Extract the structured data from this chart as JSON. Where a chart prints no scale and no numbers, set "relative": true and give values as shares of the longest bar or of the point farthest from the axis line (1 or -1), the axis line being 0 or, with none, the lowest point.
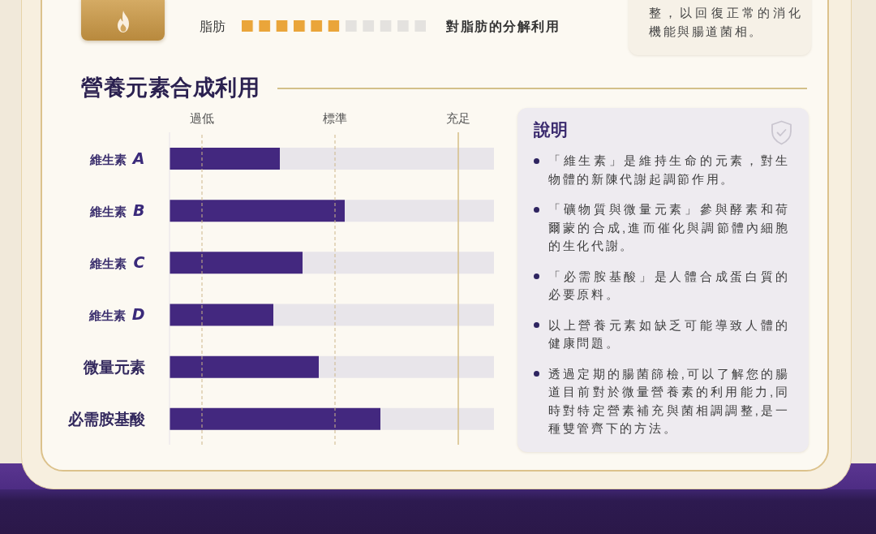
{
  "chart_data": [
    {
      "type": "bar",
      "orientation": "horizontal",
      "stacked": true,
      "relative": true,
      "categories": [
        "脂肪"
      ],
      "series": [
        {
          "color": "#eaa53a",
          "values": [
            0.53
          ]
        },
        {
          "color": "#e4e2df",
          "values": [
            0.47
          ]
        }
      ],
      "annotations": [
        "對脂肪的分解利用"
      ]
    },
    {
      "type": "other",
      "annotations": [
        "整，以回復正常的消化機能與腸道菌相。"
      ]
    },
    {
      "type": "bar",
      "title": "營養元素合成利用",
      "orientation": "horizontal",
      "stacked": true,
      "relative": true,
      "categories": [
        "維生素 A",
        "維生素 B",
        "維生素 C",
        "維生素 D",
        "微量元素",
        "必需胺基酸"
      ],
      "series": [
        {
          "color": "#43287f",
          "values": [
            0.34,
            0.54,
            0.41,
            0.32,
            0.46,
            0.65
          ]
        },
        {
          "color": "#e8e5ea",
          "values": [
            0.66,
            0.46,
            0.59,
            0.68,
            0.54,
            0.35
          ]
        }
      ],
      "ref_lines": [
        {
          "axis": "x",
          "value": 0.1,
          "label": "過低",
          "color": "#cdb68a",
          "line_style": "dashed"
        },
        {
          "axis": "x",
          "value": 0.51,
          "label": "標準",
          "color": "#cdb68a",
          "line_style": "dashed"
        },
        {
          "axis": "x",
          "value": 0.89,
          "label": "充足",
          "color": "#d6be86",
          "line_style": "solid"
        }
      ]
    },
    {
      "type": "other",
      "title": "說明",
      "annotations": [
        "「維生素」是維持生命的元素，對生物體的新陳代謝起調節作用。",
        "「礦物質與微量元素」參與酵素和荷爾蒙的合成,進而催化與調節體內細胞的生化代謝。",
        "「必需胺基酸」是人體合成蛋白質的必要原料。",
        "以上營養元素如缺乏可能導致人體的健康問題。",
        "透過定期的腸菌篩檢,可以了解您的腸道目前對於微量營養素的利用能力,同時對特定營素補充與菌相調調整,是一種雙管齊下的方法。"
      ]
    }
  ]
}
